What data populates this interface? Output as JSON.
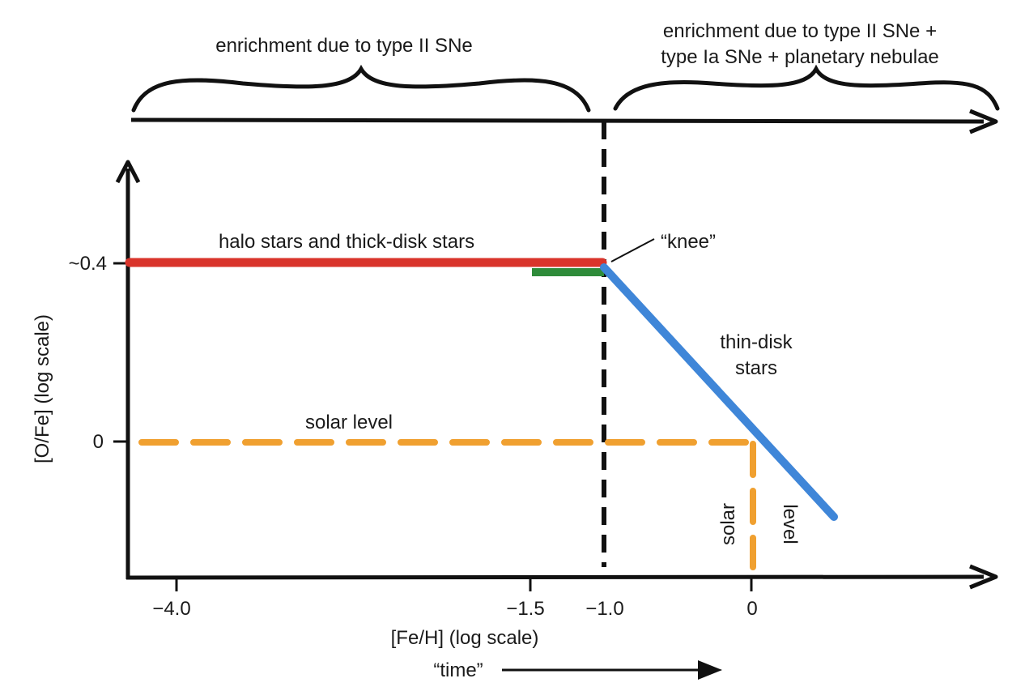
{
  "top_labels": {
    "early": "enrichment due to type II SNe",
    "late_line1": "enrichment due to type II SNe +",
    "late_line2": "type Ia SNe + planetary nebulae"
  },
  "axes": {
    "y_label": "[O/Fe]  (log scale)",
    "x_label": "[Fe/H] (log scale)",
    "time_label": "“time”",
    "y_ticks": [
      "~0.4",
      "0"
    ],
    "x_ticks": [
      "−4.0",
      "−1.5",
      "−1.0",
      "0"
    ]
  },
  "annotations": {
    "halo": "halo stars and thick-disk stars",
    "knee": "“knee”",
    "thin_disk_line1": "thin-disk",
    "thin_disk_line2": "stars",
    "solar_level_h": "solar level",
    "solar_v1": "solar",
    "solar_v2": "level"
  },
  "colors": {
    "halo_line": "#d9342b",
    "knee_segment": "#2e8b3a",
    "thin_disk_line": "#3f86d8",
    "solar_dash": "#f0a030",
    "ink": "#111111"
  }
}
